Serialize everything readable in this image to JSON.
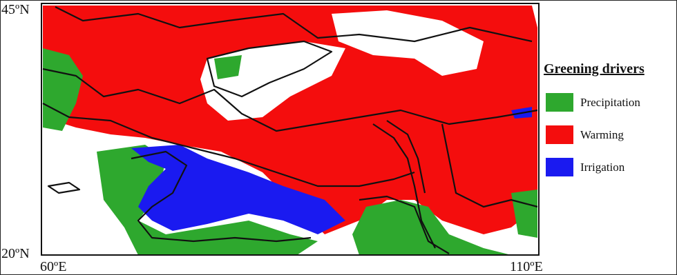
{
  "map": {
    "lat_labels": [
      "45ºN",
      "20ºN"
    ],
    "lon_labels": [
      "60ºE",
      "110ºE"
    ],
    "legend": {
      "title": "Greening drivers",
      "items": [
        {
          "label": "Precipitation",
          "color": "#2ea82e"
        },
        {
          "label": "Warming",
          "color": "#f40d0d"
        },
        {
          "label": "Irrigation",
          "color": "#1a1af0"
        }
      ]
    }
  }
}
